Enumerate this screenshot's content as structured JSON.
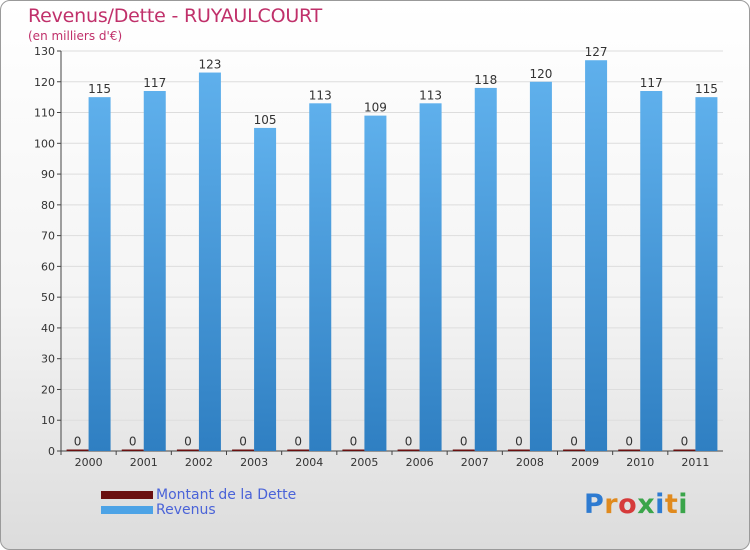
{
  "header": {
    "title": "Revenus/Dette - RUYAULCOURT",
    "subtitle": "(en milliers d'€)"
  },
  "legend": [
    {
      "label": "Montant de la Dette",
      "color": "#6b1010"
    },
    {
      "label": "Revenus",
      "color": "#4da3e6"
    }
  ],
  "brand": {
    "text": "Proxiti"
  },
  "colors": {
    "title": "#c0306a",
    "bar_light": "#5fb0ec",
    "bar_dark": "#2f7fc2",
    "debt": "#6b1010",
    "grid": "#dddddd",
    "axis": "#444444"
  },
  "chart_data": {
    "type": "bar",
    "title": "Revenus/Dette - RUYAULCOURT",
    "subtitle": "(en milliers d'€)",
    "categories": [
      "2000",
      "2001",
      "2002",
      "2003",
      "2004",
      "2005",
      "2006",
      "2007",
      "2008",
      "2009",
      "2010",
      "2011"
    ],
    "series": [
      {
        "name": "Montant de la Dette",
        "values": [
          0,
          0,
          0,
          0,
          0,
          0,
          0,
          0,
          0,
          0,
          0,
          0
        ]
      },
      {
        "name": "Revenus",
        "values": [
          115,
          117,
          123,
          105,
          113,
          109,
          113,
          118,
          120,
          127,
          117,
          115
        ]
      }
    ],
    "ylim": [
      0,
      130
    ],
    "yticks": [
      0,
      10,
      20,
      30,
      40,
      50,
      60,
      70,
      80,
      90,
      100,
      110,
      120,
      130
    ],
    "grid": true,
    "legend_position": "bottom-left"
  }
}
